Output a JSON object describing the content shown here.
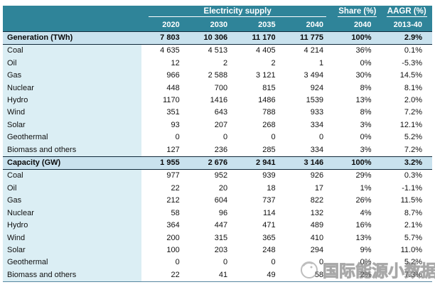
{
  "header": {
    "group_label": "Electricity supply",
    "share_label": "Share (%)",
    "aagr_label": "AAGR (%)",
    "year_cols": [
      "2020",
      "2030",
      "2035",
      "2040"
    ],
    "share_year": "2040",
    "aagr_period": "2013-40"
  },
  "colors": {
    "header_teal": "#2f8499",
    "label_column_blue": "#dbeef4",
    "section_row_blue": "#c9e2ee",
    "section_border_dark": "#10293a",
    "bottom_rule_blue": "#56869f",
    "header_text": "#ffffff"
  },
  "watermark": {
    "text": "国际能源小数据",
    "icon": "watermark-logo-icon"
  },
  "chart_data": {
    "type": "table",
    "title": "Electricity supply",
    "column_groups": [
      "Electricity supply",
      "Share (%)",
      "AAGR (%)"
    ],
    "columns": [
      "",
      "2020",
      "2030",
      "2035",
      "2040",
      "2040",
      "2013-40"
    ],
    "sections": [
      {
        "header": {
          "label": "Generation (TWh)",
          "values": [
            "7 803",
            "10 306",
            "11 170",
            "11 775"
          ],
          "share": "100%",
          "aagr": "2.9%"
        },
        "rows": [
          {
            "label": "Coal",
            "values": [
              "4 635",
              "4 513",
              "4 405",
              "4 214"
            ],
            "share": "36%",
            "aagr": "0.1%"
          },
          {
            "label": "Oil",
            "values": [
              "12",
              "2",
              "2",
              "1"
            ],
            "share": "0%",
            "aagr": "-5.3%"
          },
          {
            "label": "Gas",
            "values": [
              "966",
              "2 588",
              "3 121",
              "3 494"
            ],
            "share": "30%",
            "aagr": "14.5%"
          },
          {
            "label": "Nuclear",
            "values": [
              "448",
              "700",
              "815",
              "924"
            ],
            "share": "8%",
            "aagr": "8.1%"
          },
          {
            "label": "Hydro",
            "values": [
              "1170",
              "1416",
              "1486",
              "1539"
            ],
            "share": "13%",
            "aagr": "2.0%"
          },
          {
            "label": "Wind",
            "values": [
              "351",
              "643",
              "788",
              "933"
            ],
            "share": "8%",
            "aagr": "7.2%"
          },
          {
            "label": "Solar",
            "values": [
              "93",
              "207",
              "268",
              "334"
            ],
            "share": "3%",
            "aagr": "12.1%"
          },
          {
            "label": "Geothermal",
            "values": [
              "0",
              "0",
              "0",
              "0"
            ],
            "share": "0%",
            "aagr": "5.2%"
          },
          {
            "label": "Biomass and others",
            "values": [
              "127",
              "236",
              "285",
              "334"
            ],
            "share": "3%",
            "aagr": "7.2%"
          }
        ]
      },
      {
        "header": {
          "label": "Capacity (GW)",
          "values": [
            "1 955",
            "2 676",
            "2 941",
            "3 146"
          ],
          "share": "100%",
          "aagr": "3.2%"
        },
        "rows": [
          {
            "label": "Coal",
            "values": [
              "977",
              "952",
              "939",
              "926"
            ],
            "share": "29%",
            "aagr": "0.3%"
          },
          {
            "label": "Oil",
            "values": [
              "22",
              "20",
              "18",
              "17"
            ],
            "share": "1%",
            "aagr": "-1.1%"
          },
          {
            "label": "Gas",
            "values": [
              "212",
              "604",
              "737",
              "822"
            ],
            "share": "26%",
            "aagr": "11.5%"
          },
          {
            "label": "Nuclear",
            "values": [
              "58",
              "96",
              "114",
              "132"
            ],
            "share": "4%",
            "aagr": "8.7%"
          },
          {
            "label": "Hydro",
            "values": [
              "364",
              "447",
              "471",
              "489"
            ],
            "share": "16%",
            "aagr": "2.1%"
          },
          {
            "label": "Wind",
            "values": [
              "200",
              "315",
              "365",
              "410"
            ],
            "share": "13%",
            "aagr": "5.7%"
          },
          {
            "label": "Solar",
            "values": [
              "100",
              "203",
              "248",
              "294"
            ],
            "share": "9%",
            "aagr": "11.0%"
          },
          {
            "label": "Geothermal",
            "values": [
              "0",
              "0",
              "0",
              "0"
            ],
            "share": "0%",
            "aagr": "5.2%"
          },
          {
            "label": "Biomass and others",
            "values": [
              "22",
              "41",
              "49",
              "58"
            ],
            "share": "2%",
            "aagr": "7.3%"
          }
        ]
      }
    ]
  }
}
